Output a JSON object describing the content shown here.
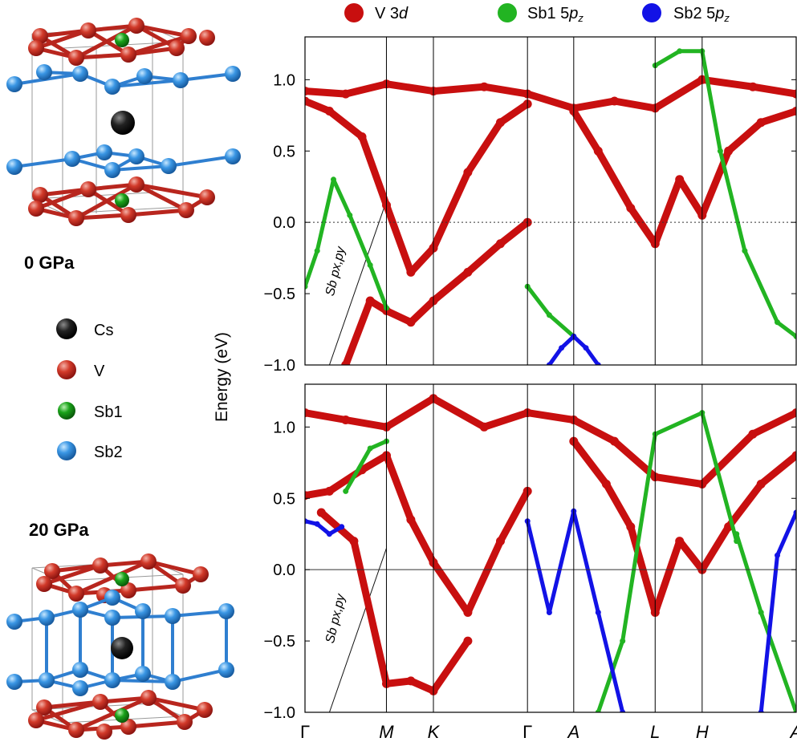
{
  "colors": {
    "cs": "#111111",
    "v": "#c8201a",
    "sb1": "#1aa31a",
    "sb2": "#2f8ee0",
    "band_v3d": "#c80f0f",
    "band_sb1": "#22b422",
    "band_sb2": "#1212e6"
  },
  "structures": {
    "top_label": "0 GPa",
    "bottom_label": "20 GPa"
  },
  "atom_legend": [
    {
      "label": "Cs",
      "color": "#111111"
    },
    {
      "label": "V",
      "color": "#c8201a"
    },
    {
      "label": "Sb1",
      "color": "#1aa31a"
    },
    {
      "label": "Sb2",
      "color": "#2f8ee0"
    }
  ],
  "band_legend": [
    {
      "label": "V 3d",
      "color": "#c80f0f"
    },
    {
      "label": "Sb1 5pz",
      "color": "#22b422"
    },
    {
      "label": "Sb2 5pz",
      "color": "#1212e6"
    }
  ],
  "chart_data": {
    "type": "line",
    "title": "",
    "ylabel": "Energy (eV)",
    "xlabel": "",
    "ylim": [
      -1.0,
      1.3
    ],
    "yticks": [
      "1.0",
      "0.5",
      "0.0",
      "−0.5",
      "−1.0"
    ],
    "kpath": [
      "Γ",
      "M",
      "K",
      "Γ",
      "A",
      "L",
      "H",
      "A"
    ],
    "kpath_positions": [
      0,
      1,
      1.577,
      2.732,
      3.3,
      4.3,
      4.877,
      6.032
    ],
    "fermi_level": 0.0,
    "panels": [
      {
        "pressure": "0 GPa",
        "fermi_line_style": "dotted",
        "annotation": "Sb px,py",
        "series": [
          {
            "projection": "V 3d",
            "x": [
              0.0,
              0.3,
              0.7,
              1.0,
              1.3,
              1.577,
              2.0,
              2.4,
              2.732
            ],
            "y": [
              0.85,
              0.78,
              0.6,
              0.12,
              -0.35,
              -0.18,
              0.35,
              0.7,
              0.83
            ]
          },
          {
            "projection": "V 3d",
            "x": [
              0.0,
              0.5,
              1.0,
              1.577,
              2.2,
              2.732,
              3.3,
              3.8,
              4.3,
              4.877,
              5.5,
              6.032
            ],
            "y": [
              0.92,
              0.9,
              0.97,
              0.92,
              0.95,
              0.9,
              0.8,
              0.85,
              0.8,
              1.0,
              0.95,
              0.9
            ]
          },
          {
            "projection": "V 3d",
            "x": [
              0.5,
              0.8,
              1.0,
              1.3,
              1.577,
              2.0,
              2.4,
              2.732
            ],
            "y": [
              -1.0,
              -0.55,
              -0.62,
              -0.7,
              -0.55,
              -0.35,
              -0.15,
              0.0
            ]
          },
          {
            "projection": "V 3d",
            "x": [
              3.3,
              3.6,
              4.0,
              4.3,
              4.6,
              4.877,
              5.2,
              5.6,
              6.032
            ],
            "y": [
              0.78,
              0.5,
              0.1,
              -0.15,
              0.3,
              0.05,
              0.5,
              0.7,
              0.78
            ]
          },
          {
            "projection": "Sb1 5pz",
            "x": [
              0.0,
              0.15,
              0.35,
              0.55,
              0.8,
              1.0
            ],
            "y": [
              -0.45,
              -0.2,
              0.3,
              0.05,
              -0.3,
              -0.6
            ]
          },
          {
            "projection": "Sb1 5pz",
            "x": [
              2.732,
              3.0,
              3.3
            ],
            "y": [
              -0.45,
              -0.65,
              -0.8
            ]
          },
          {
            "projection": "Sb1 5pz",
            "x": [
              4.3,
              4.6,
              4.877,
              5.1,
              5.4,
              5.8,
              6.032
            ],
            "y": [
              1.1,
              1.2,
              1.2,
              0.5,
              -0.2,
              -0.7,
              -0.8
            ]
          },
          {
            "projection": "Sb2 5pz",
            "x": [
              3.0,
              3.15,
              3.3,
              3.45,
              3.6
            ],
            "y": [
              -1.0,
              -0.88,
              -0.8,
              -0.88,
              -1.0
            ]
          }
        ]
      },
      {
        "pressure": "20 GPa",
        "fermi_line_style": "solid",
        "annotation": "Sb px,py",
        "series": [
          {
            "projection": "V 3d",
            "x": [
              0.0,
              0.3,
              0.7,
              1.0,
              1.3,
              1.577,
              2.0,
              2.4,
              2.732
            ],
            "y": [
              0.52,
              0.55,
              0.7,
              0.8,
              0.35,
              0.05,
              -0.3,
              0.2,
              0.55
            ]
          },
          {
            "projection": "V 3d",
            "x": [
              0.0,
              0.5,
              1.0,
              1.577,
              2.2,
              2.732,
              3.3,
              3.8,
              4.3,
              4.877,
              5.5,
              6.032
            ],
            "y": [
              1.1,
              1.05,
              1.0,
              1.2,
              1.0,
              1.1,
              1.05,
              0.9,
              0.65,
              0.6,
              0.95,
              1.1
            ]
          },
          {
            "projection": "V 3d",
            "x": [
              0.2,
              0.6,
              1.0,
              1.3,
              1.577,
              2.0
            ],
            "y": [
              0.4,
              0.2,
              -0.8,
              -0.78,
              -0.85,
              -0.5
            ]
          },
          {
            "projection": "V 3d",
            "x": [
              3.3,
              3.7,
              4.0,
              4.3,
              4.6,
              4.877,
              5.2,
              5.6,
              6.032
            ],
            "y": [
              0.9,
              0.6,
              0.3,
              -0.3,
              0.2,
              0.0,
              0.3,
              0.6,
              0.8
            ]
          },
          {
            "projection": "Sb1 5pz",
            "x": [
              0.5,
              0.8,
              1.0
            ],
            "y": [
              0.55,
              0.85,
              0.9
            ]
          },
          {
            "projection": "Sb1 5pz",
            "x": [
              3.6,
              3.9,
              4.3,
              4.877,
              5.3
            ],
            "y": [
              -1.0,
              -0.5,
              0.95,
              1.1,
              0.2
            ]
          },
          {
            "projection": "Sb1 5pz",
            "x": [
              5.3,
              5.6,
              6.032
            ],
            "y": [
              0.25,
              -0.3,
              -1.0
            ]
          },
          {
            "projection": "Sb2 5pz",
            "x": [
              0.0,
              0.15,
              0.3,
              0.45
            ],
            "y": [
              0.34,
              0.32,
              0.25,
              0.3
            ]
          },
          {
            "projection": "Sb2 5pz",
            "x": [
              2.732,
              3.0,
              3.3,
              3.6,
              3.9
            ],
            "y": [
              0.34,
              -0.3,
              0.41,
              -0.3,
              -1.0
            ]
          },
          {
            "projection": "Sb2 5pz",
            "x": [
              5.6,
              5.8,
              6.032
            ],
            "y": [
              -1.0,
              0.1,
              0.4
            ]
          }
        ]
      }
    ]
  }
}
